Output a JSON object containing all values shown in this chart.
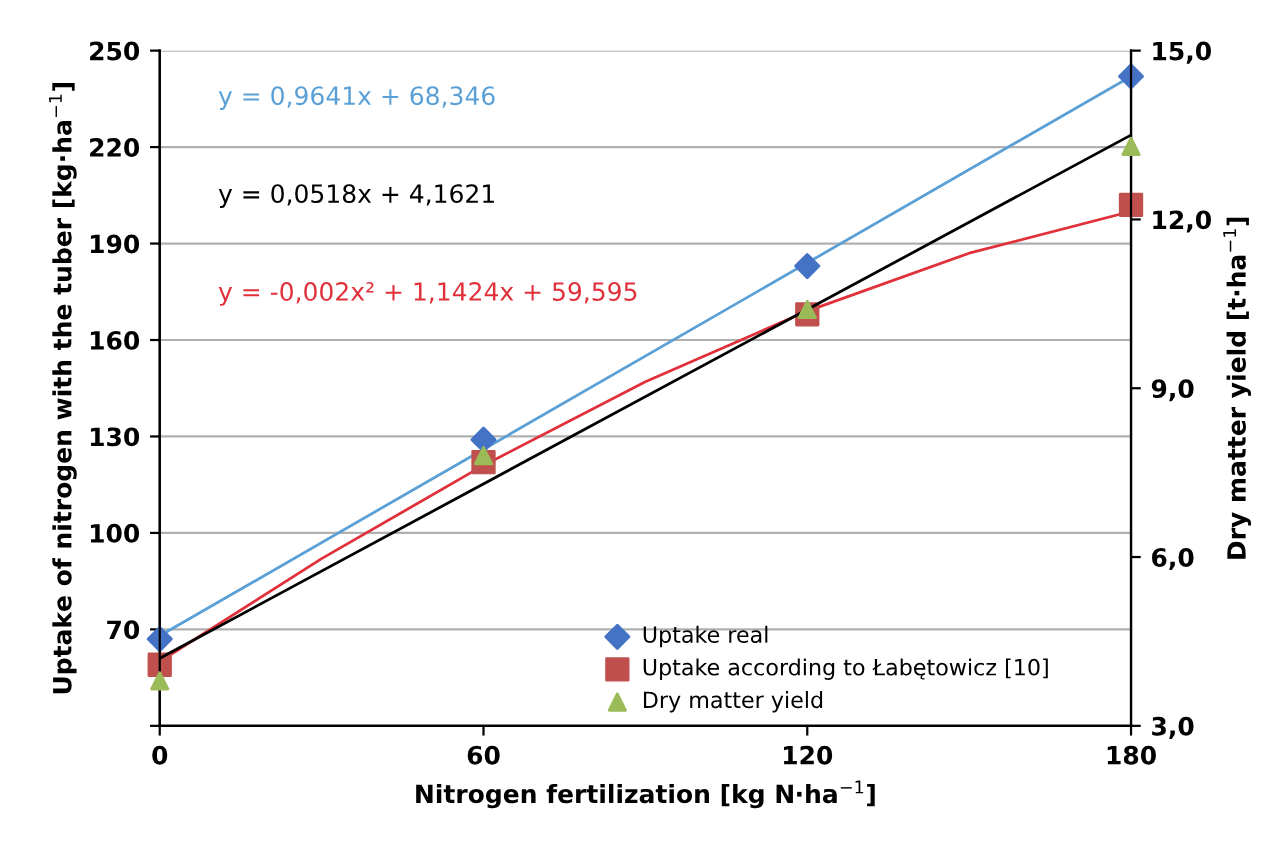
{
  "chart_data": {
    "type": "scatter",
    "xlabel": "Nitrogen fertilization [kg N·ha$^{−1}$]",
    "ylabel": "Uptake of nitrogen with the tuber [kg·ha$^{−1}$]",
    "y2label": "Dry matter yield [t·ha$^{−1}$]",
    "xlim": [
      0,
      180
    ],
    "xticks": [
      0,
      60,
      120,
      180
    ],
    "ylim": [
      40,
      250
    ],
    "yticks": [
      {
        "value": 40,
        "label": null
      },
      70,
      100,
      130,
      160,
      190,
      220,
      250
    ],
    "y2lim": [
      3,
      15
    ],
    "y2ticks": [
      {
        "value": 3,
        "label": "3,0"
      },
      {
        "value": 6,
        "label": "6,0"
      },
      {
        "value": 9,
        "label": "9,0"
      },
      {
        "value": 12,
        "label": "12,0"
      },
      {
        "value": 15,
        "label": "15,0"
      }
    ],
    "grid": "y",
    "legend": "bottom right",
    "series": [
      {
        "name": "Uptake real",
        "color": "#4472c4",
        "marker": "diamond",
        "x": [
          0,
          60,
          120,
          180
        ],
        "values": [
          67,
          129,
          183,
          242
        ]
      },
      {
        "name": "Uptake according to Łabętowicz [10]",
        "color": "#c0504d",
        "marker": "square",
        "x": [
          0,
          60,
          120,
          180
        ],
        "values": [
          59,
          122,
          168,
          202
        ]
      },
      {
        "name": "Dry matter yield",
        "color": "#9bbb59",
        "marker": "triangle",
        "axis": "y2",
        "x": [
          0,
          60,
          120,
          180
        ],
        "values": [
          3.8,
          7.8,
          10.4,
          13.3
        ]
      },
      {
        "type": "line",
        "color": "#5aa0d6",
        "x": [
          0,
          180
        ],
        "values": [
          68,
          242
        ]
      },
      {
        "type": "line",
        "color": "#000000",
        "axis": "y2",
        "x": [
          0,
          180
        ],
        "values": [
          4.2,
          13.5
        ]
      },
      {
        "type": "line",
        "color": "#e0303a",
        "x": [
          0,
          30,
          60,
          90,
          120,
          150,
          180
        ],
        "values": [
          60,
          92,
          121,
          147,
          169,
          187,
          200
        ]
      }
    ],
    "annotations": [
      "y = 0,9641x + 68,346",
      "y = 0,0518x + 4,1621",
      "y = -0,002x² + 1,1424x + 59,595"
    ]
  }
}
